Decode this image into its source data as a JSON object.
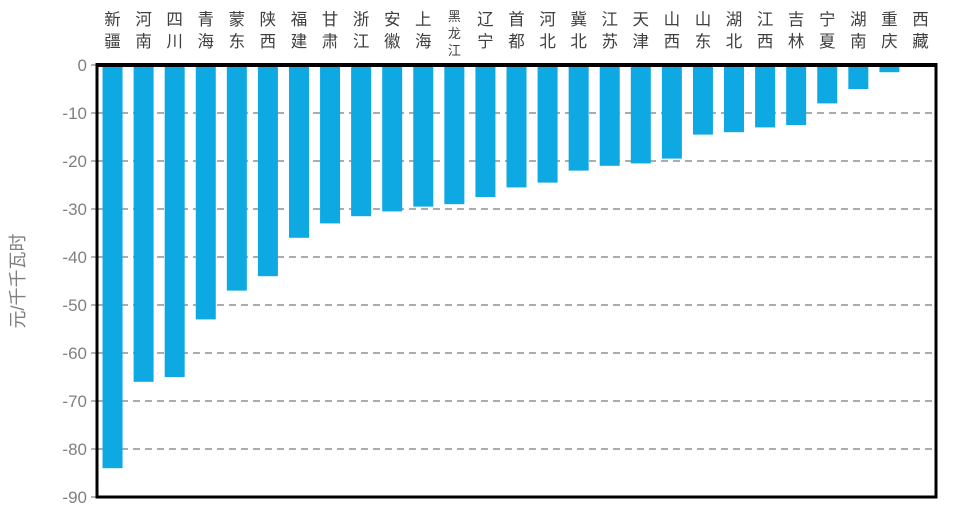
{
  "chart_data": {
    "type": "bar",
    "title": "",
    "xlabel": "",
    "ylabel": "元/千千瓦时",
    "ylim": [
      -90,
      0
    ],
    "ytick_interval": 10,
    "ytick_labels": [
      "0",
      "-10",
      "-20",
      "-30",
      "-40",
      "-50",
      "-60",
      "-70",
      "-80",
      "-90"
    ],
    "grid": "horizontal-dashed",
    "legend_position": "none",
    "bar_orientation": "vertical-negative",
    "category_label_position": "top-vertical",
    "categories": [
      "新疆",
      "河南",
      "四川",
      "青海",
      "蒙东",
      "陕西",
      "福建",
      "甘肃",
      "浙江",
      "安徽",
      "上海",
      "黑龙江",
      "辽宁",
      "首都",
      "河北",
      "冀北",
      "江苏",
      "天津",
      "山西",
      "山东",
      "湖北",
      "江西",
      "吉林",
      "宁夏",
      "湖南",
      "重庆",
      "西藏"
    ],
    "values": [
      -84,
      -66,
      -65,
      -53,
      -47,
      -44,
      -36,
      -33,
      -31.5,
      -30.5,
      -29.5,
      -29,
      -27.5,
      -25.5,
      -24.5,
      -22,
      -21,
      -20.5,
      -19.5,
      -14.5,
      -14,
      -13,
      -12.5,
      -8,
      -5,
      -1.5,
      0
    ]
  },
  "colors": {
    "bar_fill": "#0EA8E2",
    "plot_border": "#000000",
    "gridline": "#909090",
    "tick_label": "#808080",
    "axis_title": "#7f7f7f",
    "category_label": "#3f3f3f",
    "background": "#ffffff"
  }
}
